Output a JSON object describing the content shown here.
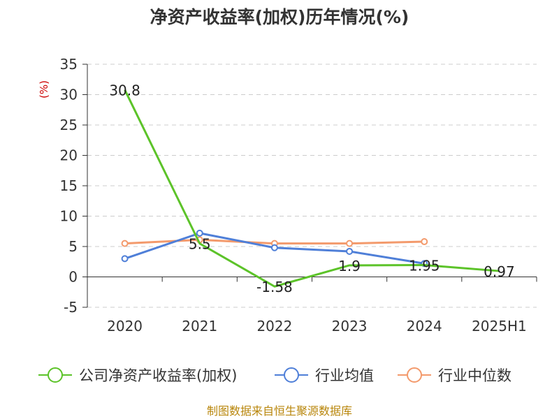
{
  "chart_data": {
    "type": "line",
    "title": "净资产收益率(加权)历年情况(%)",
    "ylabel": "(%)",
    "xlabel": "",
    "categories": [
      "2020",
      "2021",
      "2022",
      "2023",
      "2024",
      "2025H1"
    ],
    "ylim": [
      -5,
      35
    ],
    "yticks": [
      -5,
      0,
      5,
      10,
      15,
      20,
      25,
      30,
      35
    ],
    "grid": true,
    "legend_position": "bottom",
    "series": [
      {
        "name": "公司净资产收益率(加权)",
        "color": "#5cc329",
        "values": [
          30.8,
          5.5,
          -1.58,
          1.9,
          1.95,
          0.97
        ],
        "labels": [
          "30.8",
          "5.5",
          "-1.58",
          "1.9",
          "1.95",
          "0.97"
        ]
      },
      {
        "name": "行业均值",
        "color": "#4f7fd8",
        "values": [
          3.0,
          7.2,
          4.8,
          4.2,
          2.2,
          null
        ]
      },
      {
        "name": "行业中位数",
        "color": "#f39a6c",
        "values": [
          5.5,
          6.1,
          5.5,
          5.5,
          5.8,
          null
        ]
      }
    ]
  },
  "source": "制图数据来自恒生聚源数据库"
}
